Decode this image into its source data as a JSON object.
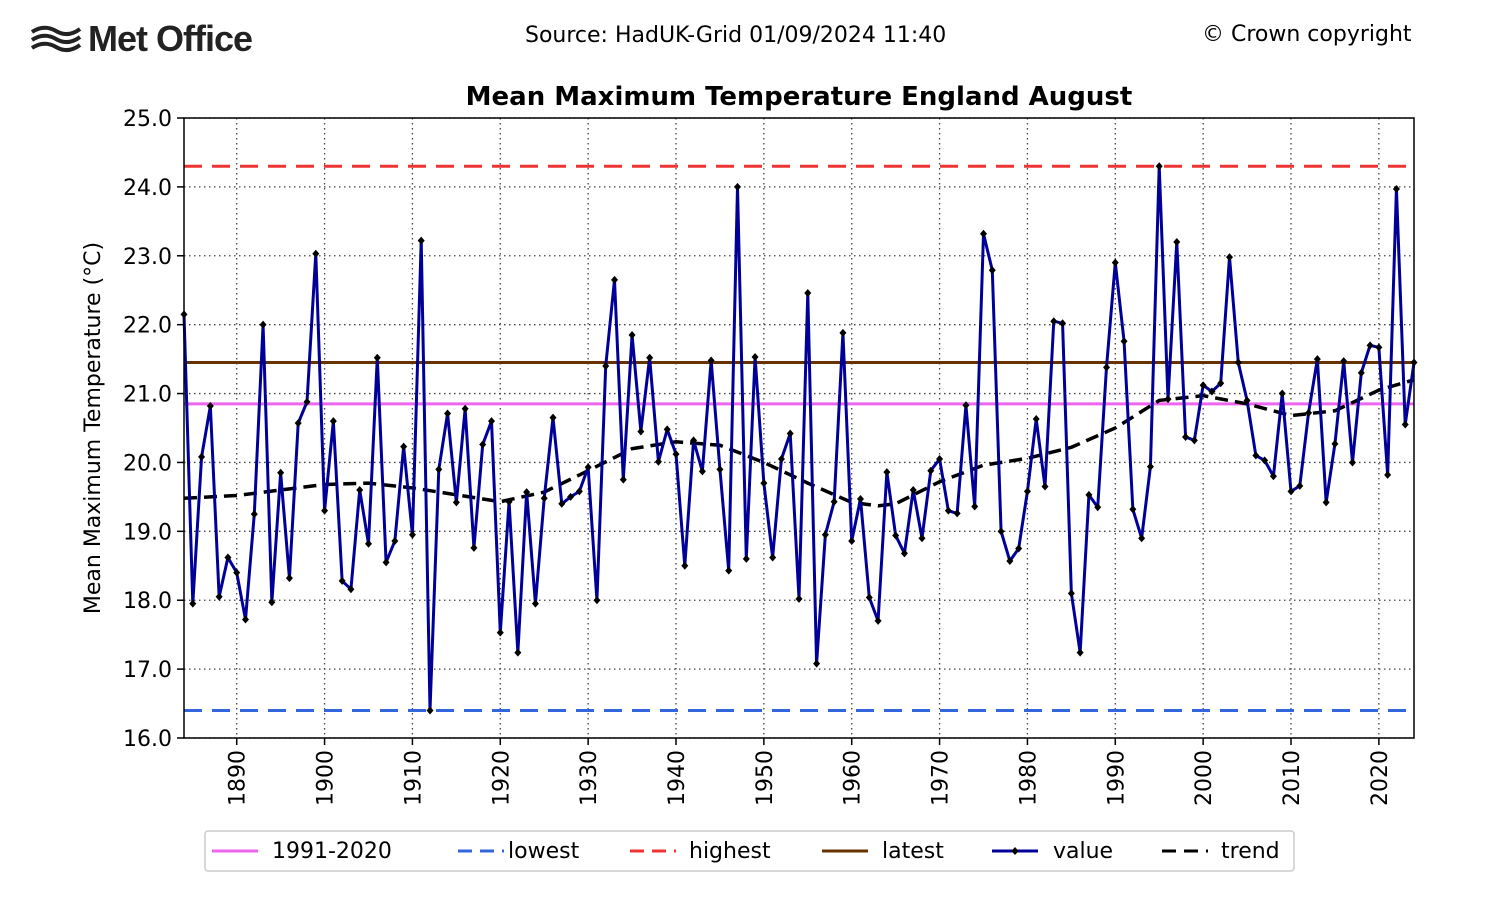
{
  "header": {
    "logo_text": "Met Office",
    "logo_icon": "met-office-waves-icon",
    "source": "Source: HadUK-Grid 01/09/2024 11:40",
    "copyright": "© Crown copyright"
  },
  "chart_data": {
    "type": "line",
    "title": "Mean Maximum Temperature England August",
    "xlabel": "",
    "ylabel": "Mean Maximum Temperature (°C)",
    "xlim": [
      1884,
      2024
    ],
    "ylim": [
      16.0,
      25.0
    ],
    "xticks": [
      1890,
      1900,
      1910,
      1920,
      1930,
      1940,
      1950,
      1960,
      1970,
      1980,
      1990,
      2000,
      2010,
      2020
    ],
    "yticks": [
      16.0,
      17.0,
      18.0,
      19.0,
      20.0,
      21.0,
      22.0,
      23.0,
      24.0,
      25.0
    ],
    "grid": true,
    "legend": {
      "placement": "bottom",
      "entries": [
        {
          "label": "1991-2020",
          "color": "#ee66ee",
          "style": "solid"
        },
        {
          "label": "lowest",
          "color": "#3366dd",
          "style": "dashed"
        },
        {
          "label": "highest",
          "color": "#ee3333",
          "style": "dashed"
        },
        {
          "label": "latest",
          "color": "#663300",
          "style": "solid"
        },
        {
          "label": "value",
          "color": "#000099",
          "style": "solid-marker"
        },
        {
          "label": "trend",
          "color": "#000000",
          "style": "dashed"
        }
      ]
    },
    "reference_lines": {
      "1991-2020": 20.85,
      "lowest": 16.4,
      "highest": 24.3,
      "latest": 21.45
    },
    "series": [
      {
        "name": "value",
        "color": "#000099",
        "x_start": 1884,
        "values": [
          22.15,
          17.95,
          20.08,
          20.82,
          18.05,
          18.62,
          18.4,
          17.72,
          19.25,
          22.0,
          17.97,
          19.85,
          18.32,
          20.57,
          20.88,
          23.03,
          19.3,
          20.6,
          18.28,
          18.16,
          19.6,
          18.82,
          21.52,
          18.55,
          18.86,
          20.23,
          18.95,
          23.22,
          16.4,
          19.9,
          20.71,
          19.42,
          20.78,
          18.76,
          20.26,
          20.6,
          17.53,
          19.43,
          17.24,
          19.57,
          17.95,
          19.48,
          20.65,
          19.4,
          19.5,
          19.58,
          19.93,
          18.0,
          21.4,
          22.65,
          19.75,
          21.85,
          20.45,
          21.52,
          20.01,
          20.48,
          20.12,
          18.5,
          20.32,
          19.87,
          21.48,
          19.9,
          18.43,
          24.0,
          18.6,
          21.53,
          19.7,
          18.62,
          20.05,
          20.42,
          18.02,
          22.46,
          17.08,
          18.95,
          19.43,
          21.88,
          18.86,
          19.47,
          18.04,
          17.7,
          19.86,
          18.94,
          18.68,
          19.6,
          18.9,
          19.88,
          20.05,
          19.3,
          19.26,
          20.83,
          19.36,
          23.32,
          22.79,
          19.0,
          18.57,
          18.75,
          19.58,
          20.63,
          19.65,
          22.05,
          22.02,
          18.1,
          17.24,
          19.53,
          19.35,
          21.38,
          22.9,
          21.76,
          19.32,
          18.9,
          19.94,
          24.3,
          20.92,
          23.2,
          20.37,
          20.32,
          21.12,
          21.03,
          21.15,
          22.98,
          21.45,
          20.9,
          20.1,
          20.03,
          19.8,
          21.0,
          19.58,
          19.66,
          20.72,
          21.5,
          19.42,
          20.27,
          21.47,
          20.0,
          21.3,
          21.7,
          21.67,
          19.82,
          23.97,
          20.55,
          21.45
        ]
      },
      {
        "name": "trend",
        "color": "#000000",
        "x": [
          1884,
          1890,
          1895,
          1900,
          1905,
          1910,
          1915,
          1920,
          1925,
          1930,
          1935,
          1940,
          1945,
          1950,
          1955,
          1960,
          1963,
          1965,
          1970,
          1975,
          1980,
          1985,
          1990,
          1995,
          2000,
          2005,
          2010,
          2015,
          2020,
          2024
        ],
        "values": [
          19.48,
          19.52,
          19.6,
          19.68,
          19.7,
          19.63,
          19.53,
          19.43,
          19.57,
          19.88,
          20.2,
          20.3,
          20.25,
          20.0,
          19.7,
          19.42,
          19.37,
          19.4,
          19.72,
          19.96,
          20.06,
          20.22,
          20.5,
          20.9,
          20.97,
          20.85,
          20.68,
          20.75,
          21.05,
          21.2
        ]
      }
    ]
  }
}
